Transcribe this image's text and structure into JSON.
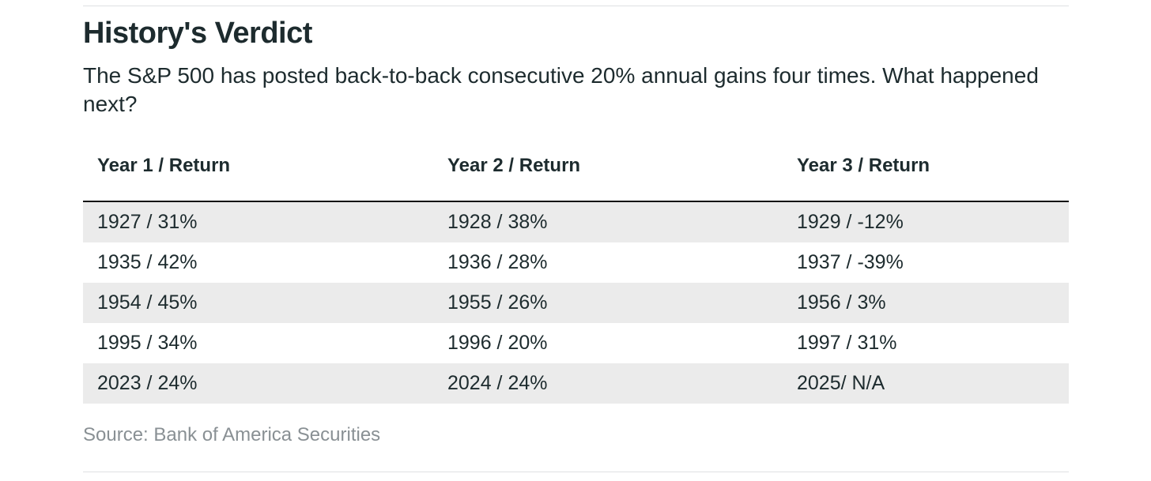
{
  "article": {
    "title": "History's Verdict",
    "subtitle": "The S&P 500 has posted back-to-back consecutive 20% annual gains four times. What happened next?",
    "source": "Source: Bank of America Securities"
  },
  "table": {
    "columns": [
      "Year 1 / Return",
      "Year 2 / Return",
      "Year 3 / Return"
    ],
    "rows": [
      [
        "1927 / 31%",
        "1928 / 38%",
        "1929 / -12%"
      ],
      [
        "1935 / 42%",
        "1936 / 28%",
        "1937 / -39%"
      ],
      [
        "1954 / 45%",
        "1955 / 26%",
        "1956 / 3%"
      ],
      [
        "1995 / 34%",
        "1996 / 20%",
        "1997 / 31%"
      ],
      [
        "2023 / 24%",
        "2024 / 24%",
        "2025/ N/A"
      ]
    ]
  },
  "colors": {
    "text_dark": "#1d2b2e",
    "row_shade": "#ebebeb",
    "rule_dark": "#121212",
    "rule_light": "#dfe1e2",
    "source_gray": "#899094"
  },
  "chart_data": {
    "type": "table",
    "title": "History's Verdict",
    "subtitle": "The S&P 500 has posted back-to-back consecutive 20% annual gains four times. What happened next?",
    "columns": [
      "Year 1 / Return",
      "Year 2 / Return",
      "Year 3 / Return"
    ],
    "rows": [
      {
        "year1": 1927,
        "return1_pct": 31,
        "year2": 1928,
        "return2_pct": 38,
        "year3": 1929,
        "return3_pct": -12
      },
      {
        "year1": 1935,
        "return1_pct": 42,
        "year2": 1936,
        "return2_pct": 28,
        "year3": 1937,
        "return3_pct": -39
      },
      {
        "year1": 1954,
        "return1_pct": 45,
        "year2": 1955,
        "return2_pct": 26,
        "year3": 1956,
        "return3_pct": 3
      },
      {
        "year1": 1995,
        "return1_pct": 34,
        "year2": 1996,
        "return2_pct": 20,
        "year3": 1997,
        "return3_pct": 31
      },
      {
        "year1": 2023,
        "return1_pct": 24,
        "year2": 2024,
        "return2_pct": 24,
        "year3": 2025,
        "return3_pct": null
      }
    ],
    "layout": {
      "zebra_striping": true,
      "header_divider": true
    },
    "source": "Source: Bank of America Securities"
  }
}
